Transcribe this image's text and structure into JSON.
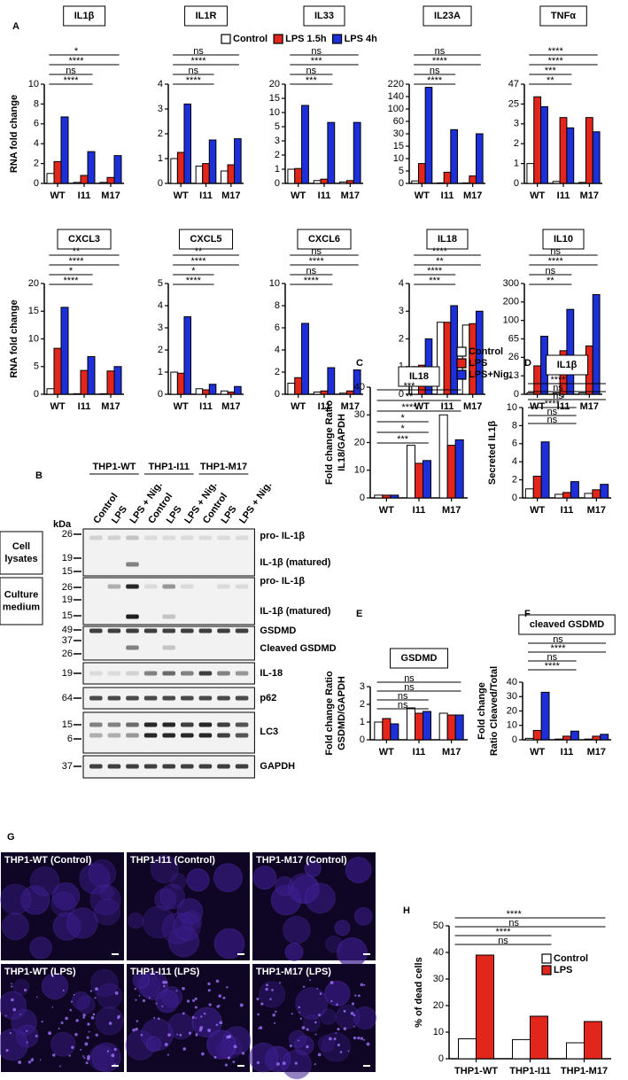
{
  "chart_data": [
    {
      "type": "bar",
      "panel": "A",
      "title": "IL1β",
      "ylabel": "RNA fold change",
      "legend": "top",
      "categories": [
        "WT",
        "I11",
        "M17"
      ],
      "ylim": [
        0,
        10
      ],
      "yticks": [
        0,
        2,
        4,
        6,
        8,
        10
      ],
      "series": [
        {
          "name": "Control",
          "color": "#ffffff",
          "values": [
            1,
            0.1,
            0.1
          ]
        },
        {
          "name": "LPS 1.5h",
          "color": "#e3261b",
          "values": [
            2.2,
            0.8,
            0.6
          ]
        },
        {
          "name": "LPS 4h",
          "color": "#1c2fd9",
          "values": [
            6.7,
            3.2,
            2.8
          ]
        }
      ],
      "comparisons": [
        {
          "label": "*",
          "from": 0,
          "to": 2
        },
        {
          "label": "****",
          "from": 0,
          "to": 2
        },
        {
          "label": "ns",
          "from": 0,
          "to": 1
        },
        {
          "label": "****",
          "from": 0,
          "to": 1
        }
      ]
    },
    {
      "type": "bar",
      "title": "IL1R",
      "categories": [
        "WT",
        "I11",
        "M17"
      ],
      "ylim": [
        0,
        4
      ],
      "yticks": [
        0,
        1,
        2,
        3,
        4
      ],
      "series": [
        {
          "color": "#ffffff",
          "values": [
            1,
            0.7,
            0.5
          ]
        },
        {
          "color": "#e3261b",
          "values": [
            1.25,
            0.8,
            0.75
          ]
        },
        {
          "color": "#1c2fd9",
          "values": [
            3.2,
            1.75,
            1.8
          ]
        }
      ],
      "comparisons": [
        {
          "label": "ns",
          "from": 0,
          "to": 2
        },
        {
          "label": "****",
          "from": 0,
          "to": 2
        },
        {
          "label": "ns",
          "from": 0,
          "to": 1
        },
        {
          "label": "****",
          "from": 0,
          "to": 1
        }
      ]
    },
    {
      "type": "bar",
      "title": "IL33",
      "categories": [
        "WT",
        "I11",
        "M17"
      ],
      "yscale": "broken",
      "ylim": [
        0,
        20
      ],
      "yticks": [
        0,
        1,
        2,
        3,
        5,
        10,
        15,
        20
      ],
      "series": [
        {
          "color": "#ffffff",
          "values": [
            1,
            0.2,
            0.1
          ]
        },
        {
          "color": "#e3261b",
          "values": [
            1.05,
            0.3,
            0.2
          ]
        },
        {
          "color": "#1c2fd9",
          "values": [
            12.5,
            6.5,
            6.5
          ]
        }
      ],
      "comparisons": [
        {
          "label": "ns",
          "from": 0,
          "to": 2
        },
        {
          "label": "***",
          "from": 0,
          "to": 2
        },
        {
          "label": "ns",
          "from": 0,
          "to": 1
        },
        {
          "label": "***",
          "from": 0,
          "to": 1
        }
      ]
    },
    {
      "type": "bar",
      "title": "IL23A",
      "categories": [
        "WT",
        "I11",
        "M17"
      ],
      "yscale": "broken",
      "ylim": [
        0,
        220
      ],
      "yticks": [
        0,
        5,
        10,
        15,
        30,
        60,
        100,
        140,
        220
      ],
      "series": [
        {
          "color": "#ffffff",
          "values": [
            1,
            0.2,
            0.2
          ]
        },
        {
          "color": "#e3261b",
          "values": [
            8,
            4.5,
            3
          ]
        },
        {
          "color": "#1c2fd9",
          "values": [
            200,
            40,
            30
          ]
        }
      ],
      "comparisons": [
        {
          "label": "ns",
          "from": 0,
          "to": 2
        },
        {
          "label": "****",
          "from": 0,
          "to": 2
        },
        {
          "label": "ns",
          "from": 0,
          "to": 1
        },
        {
          "label": "****",
          "from": 0,
          "to": 1
        }
      ]
    },
    {
      "type": "bar",
      "title": "TNFα",
      "categories": [
        "WT",
        "I11",
        "M17"
      ],
      "yscale": "broken",
      "ylim": [
        0,
        47
      ],
      "yticks": [
        0,
        1,
        2,
        3,
        25,
        47
      ],
      "series": [
        {
          "color": "#ffffff",
          "values": [
            1,
            0.1,
            0.05
          ]
        },
        {
          "color": "#e3261b",
          "values": [
            33,
            10,
            10
          ]
        },
        {
          "color": "#1c2fd9",
          "values": [
            22,
            2.8,
            2.6
          ]
        }
      ],
      "comparisons": [
        {
          "label": "****",
          "from": 0,
          "to": 2
        },
        {
          "label": "****",
          "from": 0,
          "to": 2
        },
        {
          "label": "***",
          "from": 0,
          "to": 1
        },
        {
          "label": "**",
          "from": 0,
          "to": 1
        }
      ]
    },
    {
      "type": "bar",
      "title": "CXCL3",
      "ylabel": "RNA fold change",
      "categories": [
        "WT",
        "I11",
        "M17"
      ],
      "ylim": [
        0,
        20
      ],
      "yticks": [
        0,
        5,
        10,
        15,
        20
      ],
      "series": [
        {
          "color": "#ffffff",
          "values": [
            1,
            0.1,
            0.1
          ]
        },
        {
          "color": "#e3261b",
          "values": [
            8.3,
            4.3,
            4.2
          ]
        },
        {
          "color": "#1c2fd9",
          "values": [
            15.7,
            6.8,
            5
          ]
        }
      ],
      "comparisons": [
        {
          "label": "**",
          "from": 0,
          "to": 2
        },
        {
          "label": "****",
          "from": 0,
          "to": 2
        },
        {
          "label": "*",
          "from": 0,
          "to": 1
        },
        {
          "label": "****",
          "from": 0,
          "to": 1
        }
      ]
    },
    {
      "type": "bar",
      "title": "CXCL5",
      "categories": [
        "WT",
        "I11",
        "M17"
      ],
      "ylim": [
        0,
        5
      ],
      "yticks": [
        0,
        1,
        2,
        3,
        4,
        5
      ],
      "series": [
        {
          "color": "#ffffff",
          "values": [
            1,
            0.25,
            0.15
          ]
        },
        {
          "color": "#e3261b",
          "values": [
            0.95,
            0.2,
            0.1
          ]
        },
        {
          "color": "#1c2fd9",
          "values": [
            3.5,
            0.45,
            0.35
          ]
        }
      ],
      "comparisons": [
        {
          "label": "**",
          "from": 0,
          "to": 2
        },
        {
          "label": "****",
          "from": 0,
          "to": 2
        },
        {
          "label": "*",
          "from": 0,
          "to": 1
        },
        {
          "label": "****",
          "from": 0,
          "to": 1
        }
      ]
    },
    {
      "type": "bar",
      "title": "CXCL6",
      "categories": [
        "WT",
        "I11",
        "M17"
      ],
      "ylim": [
        0,
        10
      ],
      "yticks": [
        0,
        2,
        4,
        6,
        8,
        10
      ],
      "series": [
        {
          "color": "#ffffff",
          "values": [
            1,
            0.2,
            0.1
          ]
        },
        {
          "color": "#e3261b",
          "values": [
            1.5,
            0.3,
            0.3
          ]
        },
        {
          "color": "#1c2fd9",
          "values": [
            6.4,
            2.4,
            2.2
          ]
        }
      ],
      "comparisons": [
        {
          "label": "ns",
          "from": 0,
          "to": 2
        },
        {
          "label": "****",
          "from": 0,
          "to": 2
        },
        {
          "label": "ns",
          "from": 0,
          "to": 1
        },
        {
          "label": "****",
          "from": 0,
          "to": 1
        }
      ]
    },
    {
      "type": "bar",
      "title": "IL18",
      "categories": [
        "WT",
        "I11",
        "M17"
      ],
      "ylim": [
        0,
        4
      ],
      "yticks": [
        0,
        1,
        2,
        3,
        4
      ],
      "series": [
        {
          "color": "#ffffff",
          "values": [
            1,
            2.6,
            2.5
          ]
        },
        {
          "color": "#e3261b",
          "values": [
            1.05,
            2.6,
            2.55
          ]
        },
        {
          "color": "#1c2fd9",
          "values": [
            2,
            3.2,
            3
          ]
        }
      ],
      "comparisons": [
        {
          "label": "****",
          "from": 0,
          "to": 2
        },
        {
          "label": "**",
          "from": 0,
          "to": 2
        },
        {
          "label": "****",
          "from": 0,
          "to": 1
        },
        {
          "label": "***",
          "from": 0,
          "to": 1
        }
      ]
    },
    {
      "type": "bar",
      "title": "IL10",
      "categories": [
        "WT",
        "I11",
        "M17"
      ],
      "yscale": "broken",
      "ylim": [
        0,
        300
      ],
      "yticks": [
        0,
        13,
        26,
        65,
        100,
        200,
        300
      ],
      "series": [
        {
          "color": "#ffffff",
          "values": [
            1,
            1,
            1
          ]
        },
        {
          "color": "#e3261b",
          "values": [
            20,
            40,
            50
          ]
        },
        {
          "color": "#1c2fd9",
          "values": [
            70,
            160,
            240
          ]
        }
      ],
      "comparisons": [
        {
          "label": "ns",
          "from": 0,
          "to": 2
        },
        {
          "label": "****",
          "from": 0,
          "to": 2
        },
        {
          "label": "ns",
          "from": 0,
          "to": 1
        },
        {
          "label": "**",
          "from": 0,
          "to": 1
        }
      ]
    },
    {
      "type": "bar",
      "panel": "C",
      "title": "IL18",
      "ylabel": [
        "Fold change Ratio",
        "IL18/GAPDH"
      ],
      "legend": "right",
      "categories": [
        "WT",
        "I11",
        "M17"
      ],
      "ylim": [
        0,
        40
      ],
      "yticks": [
        0,
        10,
        20,
        30,
        40
      ],
      "series": [
        {
          "name": "Control",
          "color": "#ffffff",
          "values": [
            1,
            19,
            30
          ]
        },
        {
          "name": "LPS",
          "color": "#e3261b",
          "values": [
            1,
            12.5,
            19
          ]
        },
        {
          "name": "LPS+Nig.",
          "color": "#1c2fd9",
          "values": [
            1,
            13.5,
            21
          ]
        }
      ],
      "comparisons": [
        {
          "label": "***",
          "from": 0,
          "to": 2
        },
        {
          "label": "**",
          "from": 0,
          "to": 2
        },
        {
          "label": "****",
          "from": 0,
          "to": 2
        },
        {
          "label": "*",
          "from": 0,
          "to": 1
        },
        {
          "label": "*",
          "from": 0,
          "to": 1
        },
        {
          "label": "***",
          "from": 0,
          "to": 1
        }
      ]
    },
    {
      "type": "bar",
      "panel": "D",
      "title": "IL1β",
      "ylabel": "Secreted IL1β",
      "categories": [
        "WT",
        "I11",
        "M17"
      ],
      "ylim": [
        0,
        10
      ],
      "yticks": [
        0,
        2,
        4,
        6,
        8,
        10
      ],
      "series": [
        {
          "color": "#ffffff",
          "values": [
            1,
            0.4,
            0.5
          ]
        },
        {
          "color": "#e3261b",
          "values": [
            2.4,
            0.6,
            0.9
          ]
        },
        {
          "color": "#1c2fd9",
          "values": [
            6.2,
            1.8,
            1.5
          ]
        }
      ],
      "comparisons": [
        {
          "label": "****",
          "from": 0,
          "to": 2
        },
        {
          "label": "ns",
          "from": 0,
          "to": 2
        },
        {
          "label": "ns",
          "from": 0,
          "to": 2
        },
        {
          "label": "****",
          "from": 0,
          "to": 1
        },
        {
          "label": "ns",
          "from": 0,
          "to": 1
        },
        {
          "label": "ns",
          "from": 0,
          "to": 1
        }
      ]
    },
    {
      "type": "bar",
      "panel": "E",
      "title": "GSDMD",
      "ylabel": [
        "Fold change Ratio",
        "GSDMD/GAPDH"
      ],
      "categories": [
        "WT",
        "I11",
        "M17"
      ],
      "ylim": [
        0,
        3
      ],
      "yticks": [
        0,
        1,
        2,
        3
      ],
      "series": [
        {
          "color": "#ffffff",
          "values": [
            1,
            1.8,
            1.5
          ]
        },
        {
          "color": "#e3261b",
          "values": [
            1.2,
            1.5,
            1.4
          ]
        },
        {
          "color": "#1c2fd9",
          "values": [
            0.9,
            1.6,
            1.4
          ]
        }
      ],
      "comparisons": [
        {
          "label": "ns",
          "from": 0,
          "to": 2
        },
        {
          "label": "ns",
          "from": 0,
          "to": 2
        },
        {
          "label": "ns",
          "from": 0,
          "to": 1
        },
        {
          "label": "ns",
          "from": 0,
          "to": 1
        }
      ]
    },
    {
      "type": "bar",
      "panel": "F",
      "title": "cleaved GSDMD",
      "ylabel": [
        "Fold change",
        "Ratio Cleaved/Total"
      ],
      "categories": [
        "WT",
        "I11",
        "M17"
      ],
      "ylim": [
        0,
        40
      ],
      "yticks": [
        0,
        10,
        20,
        30,
        40
      ],
      "series": [
        {
          "color": "#ffffff",
          "values": [
            1,
            0.5,
            0.5
          ]
        },
        {
          "color": "#e3261b",
          "values": [
            6.5,
            2.5,
            2.5
          ]
        },
        {
          "color": "#1c2fd9",
          "values": [
            33,
            6,
            3.8
          ]
        }
      ],
      "comparisons": [
        {
          "label": "ns",
          "from": 0,
          "to": 2
        },
        {
          "label": "****",
          "from": 0,
          "to": 2
        },
        {
          "label": "ns",
          "from": 0,
          "to": 1
        },
        {
          "label": "****",
          "from": 0,
          "to": 1
        }
      ]
    },
    {
      "type": "bar",
      "panel": "H",
      "ylabel": "% of dead cells",
      "legend": "right",
      "categories": [
        "THP1-WT",
        "THP1-I11",
        "THP1-M17"
      ],
      "ylim": [
        0,
        50
      ],
      "yticks": [
        0,
        10,
        20,
        30,
        40,
        50
      ],
      "series": [
        {
          "name": "Control",
          "color": "#ffffff",
          "values": [
            7.5,
            7.2,
            6
          ]
        },
        {
          "name": "LPS",
          "color": "#e3261b",
          "values": [
            39,
            16,
            14
          ]
        }
      ],
      "comparisons": [
        {
          "label": "****",
          "from": 0,
          "to": 2
        },
        {
          "label": "ns",
          "from": 0,
          "to": 2
        },
        {
          "label": "****",
          "from": 0,
          "to": 1
        },
        {
          "label": "ns",
          "from": 0,
          "to": 1
        }
      ]
    }
  ],
  "blot": {
    "panel": "B",
    "groups": [
      "THP1-WT",
      "THP1-I11",
      "THP1-M17"
    ],
    "lanes": [
      "Control",
      "LPS",
      "LPS + Nig.",
      "Control",
      "LPS",
      "LPS + Nig.",
      "Control",
      "LPS",
      "LPS + Nig."
    ],
    "unit": "kDa",
    "sections": [
      [
        "Cell",
        "lysates"
      ],
      [
        "Culture",
        "medium"
      ]
    ],
    "strips": [
      {
        "markers": [
          26,
          19,
          15
        ],
        "labels": [
          "pro- IL-1β",
          "IL-1β (matured)"
        ]
      },
      {
        "markers": [
          26,
          19,
          15
        ],
        "labels": [
          "pro- IL-1β",
          "IL-1β (matured)"
        ]
      },
      {
        "markers": [
          49,
          37,
          26
        ],
        "labels": [
          "GSDMD",
          "Cleaved GSDMD"
        ]
      },
      {
        "markers": [
          19
        ],
        "labels": [
          "IL-18"
        ]
      },
      {
        "markers": [
          64
        ],
        "labels": [
          "p62"
        ]
      },
      {
        "markers": [
          15,
          6
        ],
        "labels": [
          "LC3"
        ]
      },
      {
        "markers": [
          37
        ],
        "labels": [
          "GAPDH"
        ]
      }
    ]
  },
  "micrographs": {
    "panel": "G",
    "images": [
      "THP1-WT (Control)",
      "THP1-I11 (Control)",
      "THP1-M17 (Control)",
      "THP1-WT (LPS)",
      "THP1-I11 (LPS)",
      "THP1-M17 (LPS)"
    ]
  }
}
